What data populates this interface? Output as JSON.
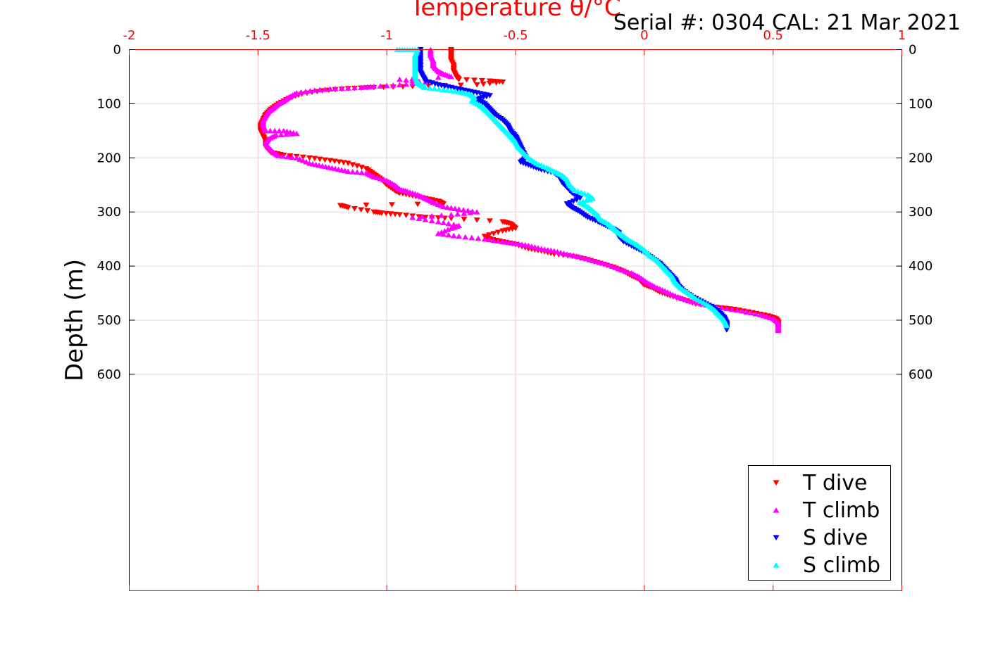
{
  "chart_data": {
    "type": "scatter",
    "title": "Serial #: 0304  CAL: 21 Mar 2021",
    "xlabel": "Temperature θ/°C",
    "ylabel": "Depth (m)",
    "xlim": [
      -2,
      1
    ],
    "ylim": [
      0,
      1000
    ],
    "y_reversed": true,
    "x_axis_position": "top",
    "x_ticks": [
      -2,
      -1.5,
      -1,
      -0.5,
      0,
      0.5,
      1
    ],
    "x_tick_labels": [
      "-2",
      "-1.5",
      "-1",
      "-0.5",
      "0",
      "0.5",
      "1"
    ],
    "y_ticks": [
      0,
      100,
      200,
      300,
      400,
      500,
      600
    ],
    "y_tick_labels": [
      "0",
      "100",
      "200",
      "300",
      "400",
      "500",
      "600"
    ],
    "grid": true,
    "legend_position": "bottom-right",
    "colors": {
      "x_axis": "#ff0000",
      "grid": "#dcdcdc"
    },
    "series": [
      {
        "name": "T dive",
        "color": "#ff0000",
        "marker": "triangle-down",
        "points": [
          [
            -0.75,
            0
          ],
          [
            -0.75,
            10
          ],
          [
            -0.75,
            20
          ],
          [
            -0.74,
            30
          ],
          [
            -0.74,
            40
          ],
          [
            -0.73,
            50
          ],
          [
            -0.72,
            55
          ],
          [
            -0.6,
            58
          ],
          [
            -0.55,
            60
          ],
          [
            -0.65,
            65
          ],
          [
            -0.9,
            68
          ],
          [
            -1.05,
            70
          ],
          [
            -1.15,
            72
          ],
          [
            -1.25,
            76
          ],
          [
            -1.33,
            82
          ],
          [
            -1.38,
            90
          ],
          [
            -1.42,
            100
          ],
          [
            -1.45,
            110
          ],
          [
            -1.47,
            120
          ],
          [
            -1.48,
            130
          ],
          [
            -1.49,
            140
          ],
          [
            -1.49,
            150
          ],
          [
            -1.48,
            160
          ],
          [
            -1.47,
            170
          ],
          [
            -1.47,
            180
          ],
          [
            -1.45,
            190
          ],
          [
            -1.4,
            195
          ],
          [
            -1.3,
            200
          ],
          [
            -1.22,
            205
          ],
          [
            -1.15,
            210
          ],
          [
            -1.08,
            220
          ],
          [
            -1.05,
            230
          ],
          [
            -1.02,
            240
          ],
          [
            -1.0,
            250
          ],
          [
            -0.97,
            260
          ],
          [
            -0.95,
            265
          ],
          [
            -0.9,
            270
          ],
          [
            -0.85,
            275
          ],
          [
            -0.8,
            280
          ],
          [
            -0.78,
            285
          ],
          [
            -1.18,
            288
          ],
          [
            -1.15,
            292
          ],
          [
            -1.05,
            300
          ],
          [
            -1.02,
            302
          ],
          [
            -0.95,
            305
          ],
          [
            -0.85,
            310
          ],
          [
            -0.75,
            312
          ],
          [
            -0.55,
            318
          ],
          [
            -0.52,
            322
          ],
          [
            -0.5,
            330
          ],
          [
            -0.55,
            335
          ],
          [
            -0.62,
            345
          ],
          [
            -0.6,
            350
          ],
          [
            -0.55,
            355
          ],
          [
            -0.5,
            360
          ],
          [
            -0.45,
            368
          ],
          [
            -0.4,
            372
          ],
          [
            -0.35,
            378
          ],
          [
            -0.28,
            382
          ],
          [
            -0.22,
            388
          ],
          [
            -0.17,
            395
          ],
          [
            -0.12,
            402
          ],
          [
            -0.08,
            410
          ],
          [
            -0.05,
            418
          ],
          [
            -0.02,
            425
          ],
          [
            0.0,
            435
          ],
          [
            0.03,
            440
          ],
          [
            0.06,
            448
          ],
          [
            0.1,
            455
          ],
          [
            0.15,
            462
          ],
          [
            0.2,
            470
          ],
          [
            0.28,
            476
          ],
          [
            0.35,
            480
          ],
          [
            0.42,
            486
          ],
          [
            0.48,
            492
          ],
          [
            0.51,
            497
          ],
          [
            0.52,
            503
          ],
          [
            0.52,
            510
          ],
          [
            0.52,
            517
          ]
        ]
      },
      {
        "name": "T climb",
        "color": "#ff00ff",
        "marker": "triangle-up",
        "points": [
          [
            -0.83,
            0
          ],
          [
            -0.83,
            10
          ],
          [
            -0.82,
            20
          ],
          [
            -0.82,
            30
          ],
          [
            -0.8,
            40
          ],
          [
            -0.78,
            45
          ],
          [
            -0.75,
            50
          ],
          [
            -0.95,
            55
          ],
          [
            -0.85,
            60
          ],
          [
            -0.95,
            65
          ],
          [
            -1.05,
            68
          ],
          [
            -1.1,
            70
          ],
          [
            -1.2,
            72
          ],
          [
            -1.28,
            75
          ],
          [
            -1.35,
            80
          ],
          [
            -1.38,
            88
          ],
          [
            -1.4,
            95
          ],
          [
            -1.42,
            100
          ],
          [
            -1.44,
            108
          ],
          [
            -1.46,
            115
          ],
          [
            -1.47,
            122
          ],
          [
            -1.48,
            130
          ],
          [
            -1.48,
            140
          ],
          [
            -1.47,
            150
          ],
          [
            -1.4,
            150
          ],
          [
            -1.35,
            155
          ],
          [
            -1.43,
            158
          ],
          [
            -1.46,
            165
          ],
          [
            -1.47,
            172
          ],
          [
            -1.46,
            180
          ],
          [
            -1.44,
            190
          ],
          [
            -1.42,
            196
          ],
          [
            -1.35,
            200
          ],
          [
            -1.3,
            210
          ],
          [
            -1.25,
            215
          ],
          [
            -1.2,
            220
          ],
          [
            -1.15,
            225
          ],
          [
            -1.08,
            228
          ],
          [
            -1.05,
            235
          ],
          [
            -1.0,
            242
          ],
          [
            -0.97,
            250
          ],
          [
            -0.95,
            258
          ],
          [
            -0.92,
            262
          ],
          [
            -0.88,
            268
          ],
          [
            -0.85,
            275
          ],
          [
            -0.82,
            282
          ],
          [
            -0.78,
            290
          ],
          [
            -0.72,
            295
          ],
          [
            -0.65,
            300
          ],
          [
            -0.75,
            305
          ],
          [
            -0.9,
            310
          ],
          [
            -0.8,
            318
          ],
          [
            -0.72,
            325
          ],
          [
            -0.75,
            330
          ],
          [
            -0.8,
            340
          ],
          [
            -0.72,
            345
          ],
          [
            -0.62,
            350
          ],
          [
            -0.55,
            355
          ],
          [
            -0.5,
            358
          ],
          [
            -0.45,
            362
          ],
          [
            -0.4,
            368
          ],
          [
            -0.35,
            372
          ],
          [
            -0.3,
            378
          ],
          [
            -0.25,
            383
          ],
          [
            -0.2,
            390
          ],
          [
            -0.15,
            396
          ],
          [
            -0.1,
            405
          ],
          [
            -0.05,
            413
          ],
          [
            -0.02,
            420
          ],
          [
            0.01,
            430
          ],
          [
            0.04,
            438
          ],
          [
            0.08,
            446
          ],
          [
            0.12,
            455
          ],
          [
            0.16,
            462
          ],
          [
            0.22,
            470
          ],
          [
            0.3,
            477
          ],
          [
            0.38,
            483
          ],
          [
            0.45,
            490
          ],
          [
            0.5,
            497
          ],
          [
            0.52,
            504
          ],
          [
            0.52,
            512
          ],
          [
            0.52,
            519
          ]
        ]
      },
      {
        "name": "S dive",
        "color": "#0000ff",
        "marker": "triangle-down",
        "points": [
          [
            -0.87,
            0
          ],
          [
            -0.87,
            10
          ],
          [
            -0.87,
            20
          ],
          [
            -0.87,
            30
          ],
          [
            -0.87,
            40
          ],
          [
            -0.86,
            50
          ],
          [
            -0.85,
            58
          ],
          [
            -0.8,
            65
          ],
          [
            -0.75,
            70
          ],
          [
            -0.7,
            75
          ],
          [
            -0.65,
            80
          ],
          [
            -0.6,
            85
          ],
          [
            -0.65,
            92
          ],
          [
            -0.62,
            100
          ],
          [
            -0.6,
            110
          ],
          [
            -0.58,
            120
          ],
          [
            -0.55,
            130
          ],
          [
            -0.53,
            140
          ],
          [
            -0.52,
            150
          ],
          [
            -0.5,
            160
          ],
          [
            -0.49,
            170
          ],
          [
            -0.48,
            180
          ],
          [
            -0.47,
            190
          ],
          [
            -0.46,
            200
          ],
          [
            -0.48,
            208
          ],
          [
            -0.44,
            215
          ],
          [
            -0.4,
            222
          ],
          [
            -0.35,
            228
          ],
          [
            -0.33,
            235
          ],
          [
            -0.32,
            245
          ],
          [
            -0.3,
            255
          ],
          [
            -0.28,
            265
          ],
          [
            -0.25,
            275
          ],
          [
            -0.3,
            285
          ],
          [
            -0.28,
            292
          ],
          [
            -0.25,
            300
          ],
          [
            -0.22,
            310
          ],
          [
            -0.18,
            318
          ],
          [
            -0.15,
            325
          ],
          [
            -0.12,
            332
          ],
          [
            -0.1,
            338
          ],
          [
            -0.1,
            345
          ],
          [
            -0.08,
            355
          ],
          [
            -0.04,
            365
          ],
          [
            0.0,
            375
          ],
          [
            0.03,
            385
          ],
          [
            0.06,
            395
          ],
          [
            0.08,
            405
          ],
          [
            0.1,
            415
          ],
          [
            0.12,
            425
          ],
          [
            0.13,
            435
          ],
          [
            0.15,
            445
          ],
          [
            0.18,
            455
          ],
          [
            0.22,
            465
          ],
          [
            0.26,
            475
          ],
          [
            0.29,
            485
          ],
          [
            0.31,
            495
          ],
          [
            0.32,
            505
          ],
          [
            0.32,
            512
          ],
          [
            0.32,
            518
          ]
        ]
      },
      {
        "name": "S climb",
        "color": "#00ffff",
        "marker": "triangle-up",
        "points": [
          [
            -0.96,
            0
          ],
          [
            -0.92,
            0
          ],
          [
            -0.88,
            0
          ],
          [
            -0.89,
            10
          ],
          [
            -0.89,
            20
          ],
          [
            -0.89,
            30
          ],
          [
            -0.89,
            40
          ],
          [
            -0.89,
            50
          ],
          [
            -0.88,
            60
          ],
          [
            -0.87,
            65
          ],
          [
            -0.85,
            70
          ],
          [
            -0.78,
            74
          ],
          [
            -0.72,
            78
          ],
          [
            -0.68,
            82
          ],
          [
            -0.66,
            88
          ],
          [
            -0.67,
            95
          ],
          [
            -0.64,
            102
          ],
          [
            -0.62,
            110
          ],
          [
            -0.6,
            120
          ],
          [
            -0.58,
            130
          ],
          [
            -0.56,
            140
          ],
          [
            -0.54,
            150
          ],
          [
            -0.52,
            160
          ],
          [
            -0.5,
            170
          ],
          [
            -0.49,
            180
          ],
          [
            -0.47,
            190
          ],
          [
            -0.45,
            200
          ],
          [
            -0.42,
            210
          ],
          [
            -0.38,
            218
          ],
          [
            -0.35,
            225
          ],
          [
            -0.32,
            232
          ],
          [
            -0.3,
            240
          ],
          [
            -0.29,
            250
          ],
          [
            -0.27,
            260
          ],
          [
            -0.22,
            268
          ],
          [
            -0.2,
            275
          ],
          [
            -0.25,
            282
          ],
          [
            -0.22,
            290
          ],
          [
            -0.2,
            298
          ],
          [
            -0.18,
            306
          ],
          [
            -0.17,
            314
          ],
          [
            -0.14,
            322
          ],
          [
            -0.12,
            330
          ],
          [
            -0.1,
            338
          ],
          [
            -0.08,
            345
          ],
          [
            -0.06,
            352
          ],
          [
            -0.03,
            360
          ],
          [
            0.0,
            370
          ],
          [
            0.02,
            380
          ],
          [
            0.05,
            390
          ],
          [
            0.07,
            400
          ],
          [
            0.09,
            410
          ],
          [
            0.11,
            420
          ],
          [
            0.12,
            430
          ],
          [
            0.14,
            440
          ],
          [
            0.17,
            450
          ],
          [
            0.2,
            460
          ],
          [
            0.24,
            470
          ],
          [
            0.27,
            480
          ],
          [
            0.29,
            490
          ],
          [
            0.31,
            500
          ],
          [
            0.32,
            510
          ]
        ]
      }
    ]
  }
}
